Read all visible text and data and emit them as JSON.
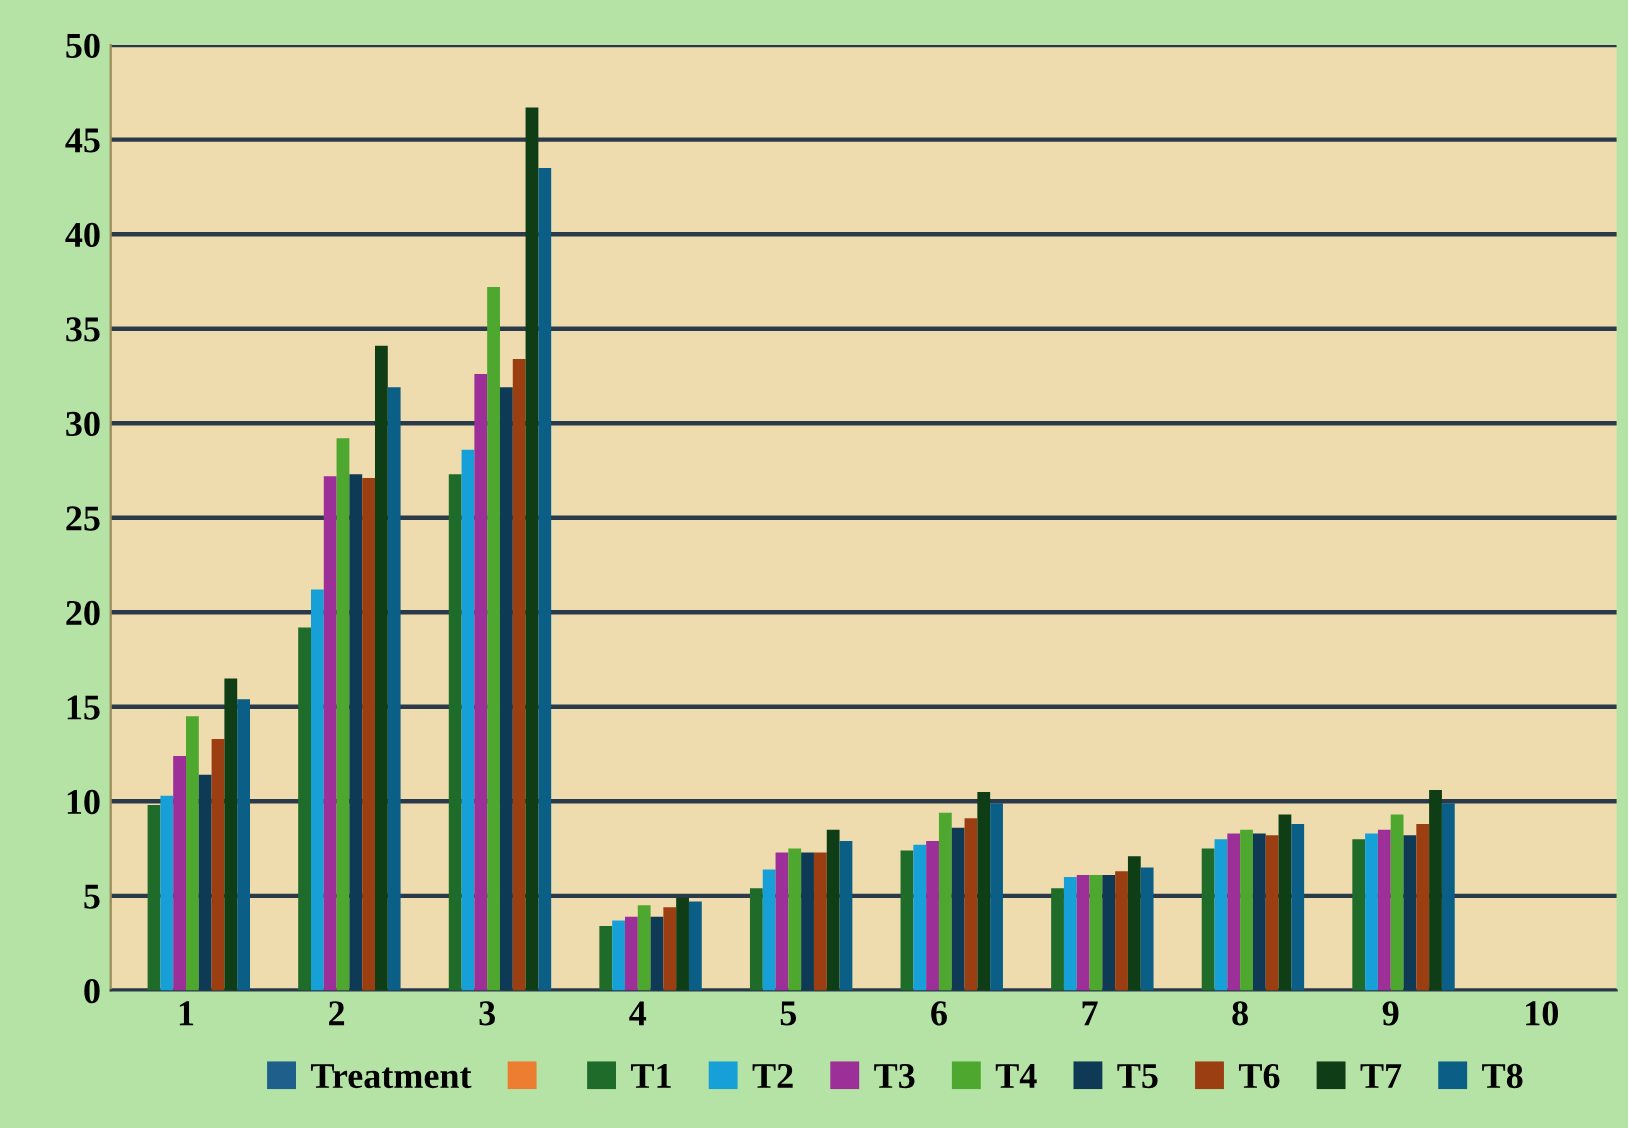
{
  "chart_data": {
    "type": "bar",
    "categories": [
      "1",
      "2",
      "3",
      "4",
      "5",
      "6",
      "7",
      "8",
      "9",
      "10"
    ],
    "series": [
      {
        "name": "Treatment",
        "color": "#1f5f8b",
        "values": [
          0,
          0,
          0,
          0,
          0,
          0,
          0,
          0,
          0,
          null
        ]
      },
      {
        "color": "#ed7d31",
        "values": [
          0,
          0,
          0,
          0,
          0,
          0,
          0,
          0,
          0,
          null
        ]
      },
      {
        "name": "T1",
        "color": "#1e6b2a",
        "values": [
          9.8,
          19.2,
          27.3,
          3.4,
          5.4,
          7.4,
          5.4,
          7.5,
          8.0,
          null
        ]
      },
      {
        "name": "T2",
        "color": "#17a0d8",
        "values": [
          10.3,
          21.2,
          28.6,
          3.7,
          6.4,
          7.7,
          6.0,
          8.0,
          8.3,
          null
        ]
      },
      {
        "name": "T3",
        "color": "#9c2f98",
        "values": [
          12.4,
          27.2,
          32.6,
          3.9,
          7.3,
          7.9,
          6.1,
          8.3,
          8.5,
          null
        ]
      },
      {
        "name": "T4",
        "color": "#4ea72e",
        "values": [
          14.5,
          29.2,
          37.2,
          4.5,
          7.5,
          9.4,
          6.1,
          8.5,
          9.3,
          null
        ]
      },
      {
        "name": "T5",
        "color": "#0e3a55",
        "values": [
          11.4,
          27.3,
          31.9,
          3.9,
          7.3,
          8.6,
          6.1,
          8.3,
          8.2,
          null
        ]
      },
      {
        "name": "T6",
        "color": "#9b3f12",
        "values": [
          13.3,
          27.1,
          33.4,
          4.4,
          7.3,
          9.1,
          6.3,
          8.2,
          8.8,
          null
        ]
      },
      {
        "name": "T7",
        "color": "#0f3d16",
        "values": [
          16.5,
          34.1,
          46.7,
          4.9,
          8.5,
          10.5,
          7.1,
          9.3,
          10.6,
          null
        ]
      },
      {
        "name": "T8",
        "color": "#0b5f86",
        "values": [
          15.4,
          31.9,
          43.5,
          4.7,
          7.9,
          9.9,
          6.5,
          8.8,
          9.9,
          null
        ]
      }
    ],
    "ylim": [
      0,
      50
    ],
    "yticks": [
      0,
      5,
      10,
      15,
      20,
      25,
      30,
      35,
      40,
      45,
      50
    ],
    "grid": "y",
    "legend": "bottom"
  }
}
